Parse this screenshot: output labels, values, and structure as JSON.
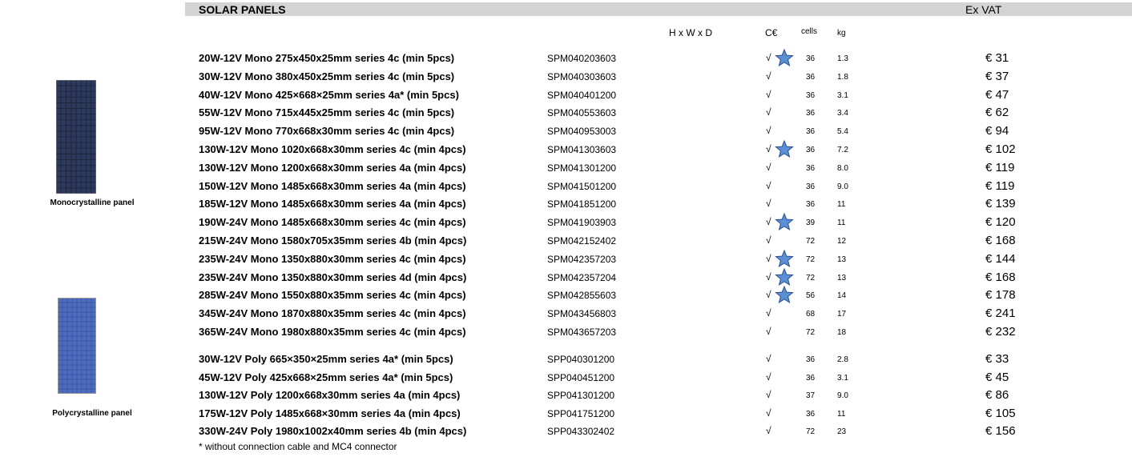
{
  "header": {
    "title": "SOLAR PANELS",
    "price_note": "Ex VAT"
  },
  "columns": {
    "dimensions": "H x W x D",
    "ce": "C€",
    "cells": "cells",
    "kg": "kg"
  },
  "sections": [
    {
      "label": "Monocrystalline panel",
      "rows": [
        {
          "description": "20W-12V Mono 275x450x25mm series 4c (min 5pcs)",
          "code": "SPM040203603",
          "ce": "√",
          "star": true,
          "cells": "36",
          "kg": "1.3",
          "price": "€ 31"
        },
        {
          "description": "30W-12V Mono 380x450x25mm series 4c (min 5pcs)",
          "code": "SPM040303603",
          "ce": "√",
          "star": false,
          "cells": "36",
          "kg": "1.8",
          "price": "€ 37"
        },
        {
          "description": "40W-12V Mono 425×668×25mm series 4a* (min 5pcs)",
          "code": "SPM040401200",
          "ce": "√",
          "star": false,
          "cells": "36",
          "kg": "3.1",
          "price": "€ 47"
        },
        {
          "description": "55W-12V Mono 715x445x25mm series 4c (min 5pcs)",
          "code": "SPM040553603",
          "ce": "√",
          "star": false,
          "cells": "36",
          "kg": "3.4",
          "price": "€ 62"
        },
        {
          "description": "95W-12V Mono 770x668x30mm series 4c (min 4pcs)",
          "code": "SPM040953003",
          "ce": "√",
          "star": false,
          "cells": "36",
          "kg": "5.4",
          "price": "€ 94"
        },
        {
          "description": "130W-12V Mono 1020x668x30mm series 4c (min 4pcs)",
          "code": "SPM041303603",
          "ce": "√",
          "star": true,
          "cells": "36",
          "kg": "7.2",
          "price": "€ 102"
        },
        {
          "description": "130W-12V Mono 1200x668x30mm series 4a (min 4pcs)",
          "code": "SPM041301200",
          "ce": "√",
          "star": false,
          "cells": "36",
          "kg": "8.0",
          "price": "€ 119"
        },
        {
          "description": "150W-12V Mono 1485x668x30mm series 4a (min 4pcs)",
          "code": "SPM041501200",
          "ce": "√",
          "star": false,
          "cells": "36",
          "kg": "9.0",
          "price": "€ 119"
        },
        {
          "description": "185W-12V Mono 1485x668x30mm series 4a (min 4pcs)",
          "code": "SPM041851200",
          "ce": "√",
          "star": false,
          "cells": "36",
          "kg": "11",
          "price": "€ 139"
        },
        {
          "description": "190W-24V Mono 1485x668x30mm series 4c (min 4pcs)",
          "code": "SPM041903903",
          "ce": "√",
          "star": true,
          "cells": "39",
          "kg": "11",
          "price": "€ 120"
        },
        {
          "description": "215W-24V Mono 1580x705x35mm series 4b (min 4pcs)",
          "code": "SPM042152402",
          "ce": "√",
          "star": false,
          "cells": "72",
          "kg": "12",
          "price": "€ 168"
        },
        {
          "description": "235W-24V Mono 1350x880x30mm series 4c (min 4pcs)",
          "code": "SPM042357203",
          "ce": "√",
          "star": true,
          "cells": "72",
          "kg": "13",
          "price": "€ 144"
        },
        {
          "description": "235W-24V Mono 1350x880x30mm series 4d (min 4pcs)",
          "code": "SPM042357204",
          "ce": "√",
          "star": true,
          "cells": "72",
          "kg": "13",
          "price": "€ 168"
        },
        {
          "description": "285W-24V Mono 1550x880x35mm series 4c (min 4pcs)",
          "code": "SPM042855603",
          "ce": "√",
          "star": true,
          "cells": "56",
          "kg": "14",
          "price": "€ 178"
        },
        {
          "description": "345W-24V Mono 1870x880x35mm series 4c (min 4pcs)",
          "code": "SPM043456803",
          "ce": "√",
          "star": false,
          "cells": "68",
          "kg": "17",
          "price": "€ 241"
        },
        {
          "description": "365W-24V Mono 1980x880x35mm series 4c (min 4pcs)",
          "code": "SPM043657203",
          "ce": "√",
          "star": false,
          "cells": "72",
          "kg": "18",
          "price": "€ 232"
        }
      ]
    },
    {
      "label": "Polycrystalline panel",
      "rows": [
        {
          "description": "30W-12V Poly 665×350×25mm series 4a* (min 5pcs)",
          "code": "SPP040301200",
          "ce": "√",
          "star": false,
          "cells": "36",
          "kg": "2.8",
          "price": "€ 33"
        },
        {
          "description": "45W-12V Poly 425x668×25mm series 4a* (min 5pcs)",
          "code": "SPP040451200",
          "ce": "√",
          "star": false,
          "cells": "36",
          "kg": "3.1",
          "price": "€ 45"
        },
        {
          "description": "130W-12V Poly 1200x668x30mm series 4a (min 4pcs)",
          "code": "SPP041301200",
          "ce": "√",
          "star": false,
          "cells": "37",
          "kg": "9.0",
          "price": "€ 86"
        },
        {
          "description": "175W-12V Poly 1485x668×30mm series 4a (min 4pcs)",
          "code": "SPP041751200",
          "ce": "√",
          "star": false,
          "cells": "36",
          "kg": "11",
          "price": "€ 105"
        },
        {
          "description": "330W-24V Poly 1980x1002x40mm series 4b (min 4pcs)",
          "code": "SPP043302402",
          "ce": "√",
          "star": false,
          "cells": "72",
          "kg": "23",
          "price": "€ 156"
        }
      ]
    }
  ],
  "footnote": "* without connection cable and MC4 connector"
}
